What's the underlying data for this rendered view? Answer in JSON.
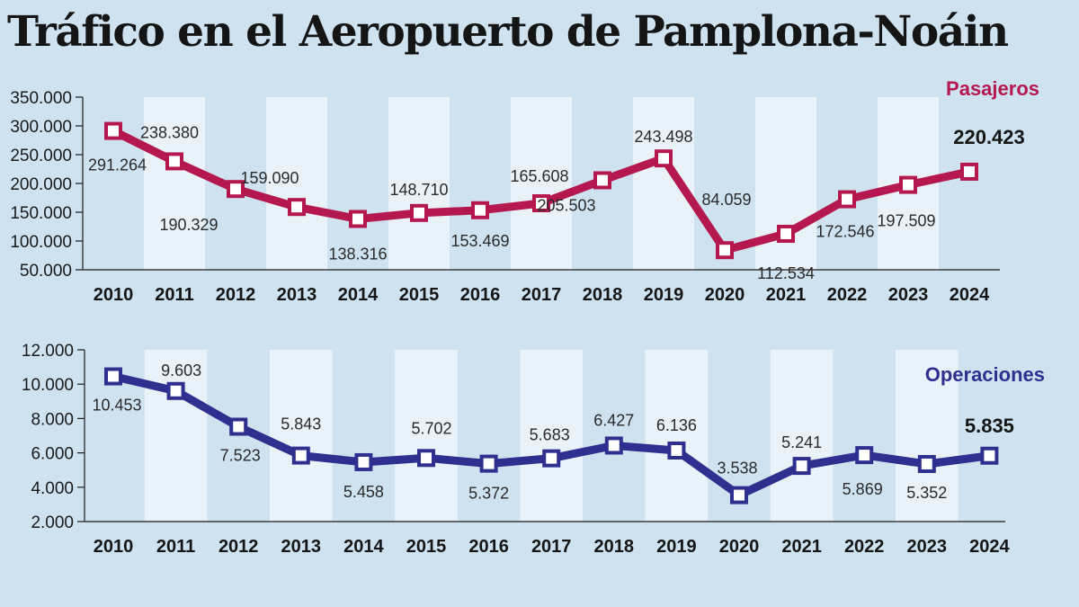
{
  "title": "Tráfico en el Aeropuerto de Pamplona-Noáin",
  "colors": {
    "background": "#cfe2ef",
    "band": "#eaf2f9",
    "pasajeros": "#b5184f",
    "operaciones": "#2e2f8f"
  },
  "chart_data": [
    {
      "type": "line",
      "series_name": "Pasajeros",
      "x": [
        "2010",
        "2011",
        "2012",
        "2013",
        "2014",
        "2015",
        "2016",
        "2017",
        "2018",
        "2019",
        "2020",
        "2021",
        "2022",
        "2023",
        "2024"
      ],
      "values": [
        291264,
        238380,
        190329,
        159090,
        138316,
        148710,
        153469,
        165608,
        205503,
        243498,
        84059,
        112534,
        172546,
        197509,
        220423
      ],
      "value_labels": [
        "291.264",
        "238.380",
        "190.329",
        "159.090",
        "138.316",
        "148.710",
        "153.469",
        "165.608",
        "205.503",
        "243.498",
        "84.059",
        "112.534",
        "172.546",
        "197.509",
        "220.423"
      ],
      "y_ticks": [
        50000,
        100000,
        150000,
        200000,
        250000,
        300000,
        350000
      ],
      "y_tick_labels": [
        "50.000",
        "100.000",
        "150.000",
        "200.000",
        "250.000",
        "300.000",
        "350.000"
      ],
      "ylim": [
        50000,
        350000
      ],
      "legend_position": "top-right"
    },
    {
      "type": "line",
      "series_name": "Operaciones",
      "x": [
        "2010",
        "2011",
        "2012",
        "2013",
        "2014",
        "2015",
        "2016",
        "2017",
        "2018",
        "2019",
        "2020",
        "2021",
        "2022",
        "2023",
        "2024"
      ],
      "values": [
        10453,
        9603,
        7523,
        5843,
        5458,
        5702,
        5372,
        5683,
        6427,
        6136,
        3538,
        5241,
        5869,
        5352,
        5835
      ],
      "value_labels": [
        "10.453",
        "9.603",
        "7.523",
        "5.843",
        "5.458",
        "5.702",
        "5.372",
        "5.683",
        "6.427",
        "6.136",
        "3.538",
        "5.241",
        "5.869",
        "5.352",
        "5.835"
      ],
      "y_ticks": [
        2000,
        4000,
        6000,
        8000,
        10000,
        12000
      ],
      "y_tick_labels": [
        "2.000",
        "4.000",
        "6.000",
        "8.000",
        "10.000",
        "12.000"
      ],
      "ylim": [
        2000,
        12000
      ],
      "legend_position": "top-right"
    }
  ]
}
